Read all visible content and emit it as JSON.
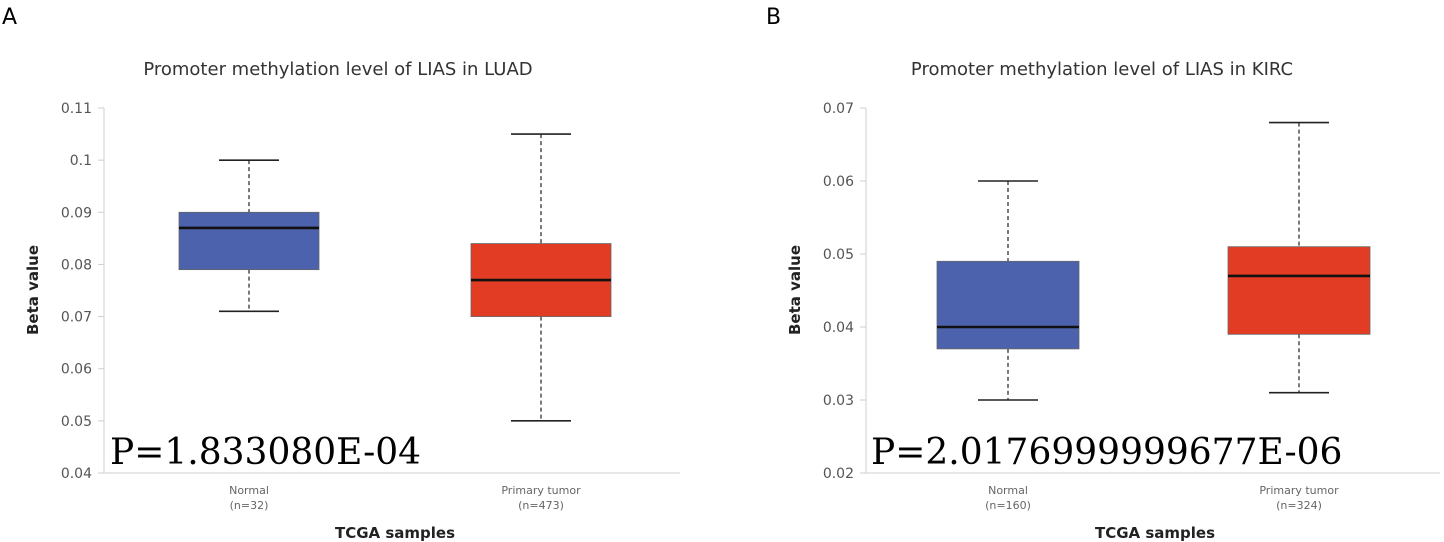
{
  "figure": {
    "panel_labels": [
      "A",
      "B"
    ]
  },
  "chart_data": [
    {
      "type": "box",
      "panel": "A",
      "title": "Promoter methylation level of LIAS in LUAD",
      "xlabel": "TCGA samples",
      "ylabel": "Beta value",
      "ylim": [
        0.04,
        0.11
      ],
      "yticks": [
        0.04,
        0.05,
        0.06,
        0.07,
        0.08,
        0.09,
        0.1,
        0.11
      ],
      "ytick_labels": [
        "0.04",
        "0.05",
        "0.06",
        "0.07",
        "0.08",
        "0.09",
        "0.1",
        "0.11"
      ],
      "annotation": "P=1.833080E-04",
      "categories": [
        {
          "name": "Normal",
          "n_label": "(n=32)",
          "min": 0.071,
          "q1": 0.079,
          "median": 0.087,
          "q3": 0.09,
          "max": 0.1,
          "color": "#4c62ad"
        },
        {
          "name": "Primary tumor",
          "n_label": "(n=473)",
          "min": 0.05,
          "q1": 0.07,
          "median": 0.077,
          "q3": 0.084,
          "max": 0.105,
          "color": "#e33c25"
        }
      ]
    },
    {
      "type": "box",
      "panel": "B",
      "title": "Promoter methylation level of LIAS in KIRC",
      "xlabel": "TCGA samples",
      "ylabel": "Beta value",
      "ylim": [
        0.02,
        0.07
      ],
      "yticks": [
        0.02,
        0.03,
        0.04,
        0.05,
        0.06,
        0.07
      ],
      "ytick_labels": [
        "0.02",
        "0.03",
        "0.04",
        "0.05",
        "0.06",
        "0.07"
      ],
      "annotation": "P=2.0176999999677E-06",
      "categories": [
        {
          "name": "Normal",
          "n_label": "(n=160)",
          "min": 0.03,
          "q1": 0.037,
          "median": 0.04,
          "q3": 0.049,
          "max": 0.06,
          "color": "#4c62ad"
        },
        {
          "name": "Primary tumor",
          "n_label": "(n=324)",
          "min": 0.031,
          "q1": 0.039,
          "median": 0.047,
          "q3": 0.051,
          "max": 0.068,
          "color": "#e33c25"
        }
      ]
    }
  ]
}
